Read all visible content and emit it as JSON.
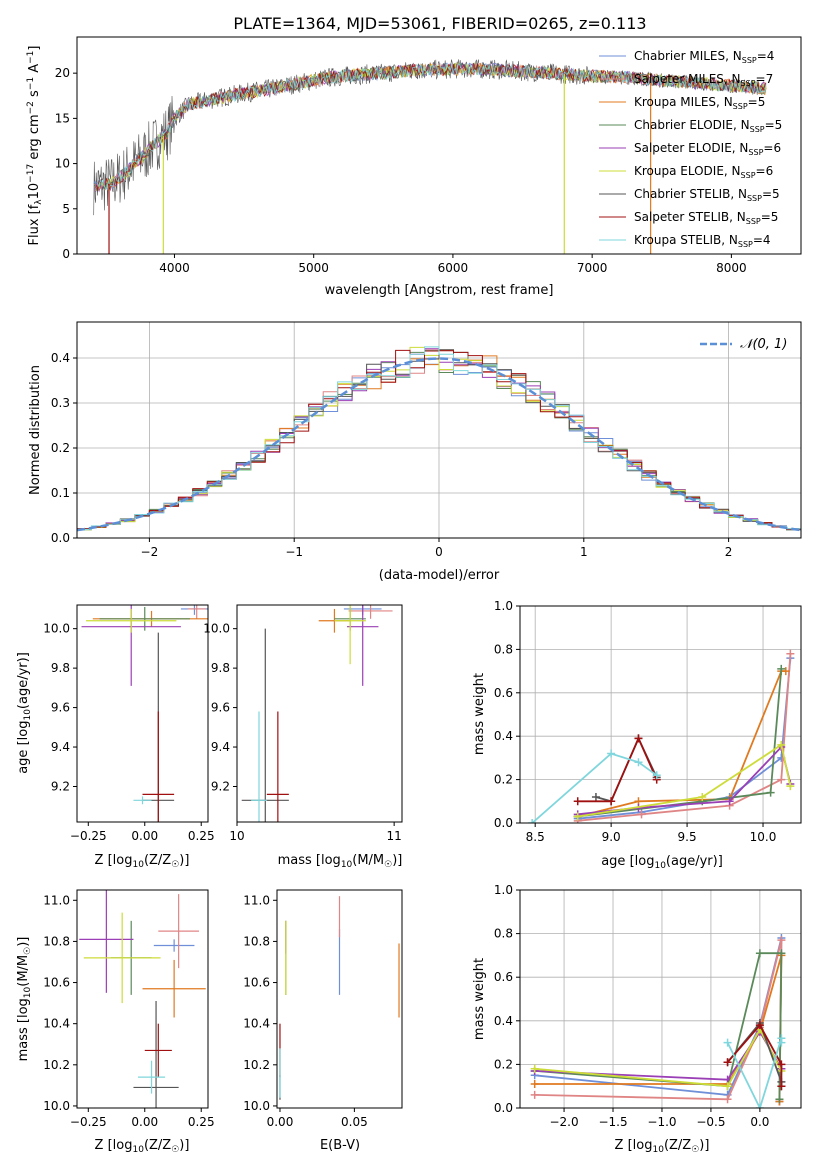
{
  "figure": {
    "title": "PLATE=1364, MJD=53061, FIBERID=0265, z=0.113"
  },
  "colors": {
    "Chabrier MILES": "#6f8fd8",
    "Salpeter MILES": "#e08585",
    "Kroupa MILES": "#e07a20",
    "Chabrier ELODIE": "#5a8a5a",
    "Salpeter ELODIE": "#9a3fb5",
    "Kroupa ELODIE": "#cddc39",
    "Chabrier STELIB": "#555555",
    "Salpeter STELIB": "#a01010",
    "Kroupa STELIB": "#7fd6dc"
  },
  "chart_data": [
    {
      "id": "spectrum",
      "type": "line",
      "xlabel": "wavelength [Angstrom, rest frame]",
      "ylabel": "Flux [f_λ10^-17 erg cm^-2 s^-1 A^-1]",
      "xlim": [
        3300,
        8500
      ],
      "ylim": [
        0,
        24
      ],
      "xticks": [
        4000,
        5000,
        6000,
        7000,
        8000
      ],
      "yticks": [
        0,
        5,
        10,
        15,
        20
      ],
      "grid": false,
      "legend_position": "top-right",
      "data_profile": {
        "x": [
          3420,
          3550,
          3650,
          3750,
          3850,
          3950,
          4000,
          4100,
          4300,
          4500,
          4700,
          4900,
          5100,
          5300,
          5500,
          5700,
          5900,
          6100,
          6300,
          6500,
          6700,
          6900,
          7100,
          7300,
          7500,
          7700,
          7900,
          8100,
          8250
        ],
        "y": [
          7.5,
          7.8,
          9.0,
          10.5,
          12.0,
          13.5,
          15.0,
          16.5,
          17.2,
          17.8,
          18.3,
          18.9,
          19.5,
          19.8,
          20.0,
          20.3,
          20.4,
          20.5,
          20.4,
          20.2,
          20.0,
          19.8,
          19.6,
          19.5,
          19.2,
          19.0,
          18.7,
          18.5,
          18.3
        ]
      },
      "legend": [
        {
          "name": "Chabrier MILES",
          "n": "N_SSP=4"
        },
        {
          "name": "Salpeter MILES",
          "n": "N_SSP=7"
        },
        {
          "name": "Kroupa MILES",
          "n": "N_SSP=5"
        },
        {
          "name": "Chabrier ELODIE",
          "n": "N_SSP=5"
        },
        {
          "name": "Salpeter ELODIE",
          "n": "N_SSP=6"
        },
        {
          "name": "Kroupa ELODIE",
          "n": "N_SSP=6"
        },
        {
          "name": "Chabrier STELIB",
          "n": "N_SSP=5"
        },
        {
          "name": "Salpeter STELIB",
          "n": "N_SSP=5"
        },
        {
          "name": "Kroupa STELIB",
          "n": "N_SSP=4"
        }
      ]
    },
    {
      "id": "residuals",
      "type": "line",
      "xlabel": "(data-model)/error",
      "ylabel": "Normed distribution",
      "xlim": [
        -2.5,
        2.5
      ],
      "ylim": [
        0,
        0.48
      ],
      "xticks": [
        -2,
        -1,
        0,
        1,
        2
      ],
      "yticks": [
        0.0,
        0.1,
        0.2,
        0.3,
        0.4
      ],
      "grid": true,
      "legend_position": "top-right",
      "reference_curve": {
        "name": "N(0,1)",
        "mean": 0,
        "sigma": 1
      },
      "histogram_bins": 50
    },
    {
      "id": "age_vs_Z",
      "type": "scatter",
      "xlabel": "Z [log10(Z/Z☉)]",
      "ylabel": "age [log10(age/yr)]",
      "xlim": [
        -0.3,
        0.28
      ],
      "ylim": [
        9.02,
        10.12
      ],
      "xticks": [
        -0.25,
        0.0,
        0.25
      ],
      "yticks": [
        9.2,
        9.4,
        9.6,
        9.8,
        10.0
      ],
      "grid": false,
      "points": [
        {
          "model": "Chabrier MILES",
          "x": 0.22,
          "y": 10.1,
          "xerr": 0.06,
          "yerr": 0.03
        },
        {
          "model": "Salpeter MILES",
          "x": 0.23,
          "y": 10.1,
          "xerr": 0.04,
          "yerr": 0.05
        },
        {
          "model": "Kroupa MILES",
          "x": 0.03,
          "y": 10.05,
          "xerr": 0.26,
          "yerr": 0.04
        },
        {
          "model": "Chabrier ELODIE",
          "x": 0.0,
          "y": 10.05,
          "xerr": 0.2,
          "yerr": 0.06
        },
        {
          "model": "Salpeter ELODIE",
          "x": -0.06,
          "y": 10.01,
          "xerr": 0.22,
          "yerr": 0.3
        },
        {
          "model": "Kroupa ELODIE",
          "x": -0.06,
          "y": 10.04,
          "xerr": 0.2,
          "yerr": 0.06
        },
        {
          "model": "Chabrier STELIB",
          "x": 0.06,
          "y": 9.13,
          "xerr": 0.07,
          "yerr": 0.85
        },
        {
          "model": "Salpeter STELIB",
          "x": 0.06,
          "y": 9.16,
          "xerr": 0.07,
          "yerr": 0.42
        },
        {
          "model": "Kroupa STELIB",
          "x": -0.01,
          "y": 9.13,
          "xerr": 0.04,
          "yerr": 0.02
        }
      ]
    },
    {
      "id": "age_vs_mass",
      "type": "scatter",
      "xlabel": "mass [log10(M/M☉)]",
      "ylabel": "",
      "xlim": [
        10.0,
        11.05
      ],
      "ylim": [
        9.02,
        10.12
      ],
      "xticks": [
        10,
        11
      ],
      "yticks": [
        9.2,
        9.4,
        9.6,
        9.8,
        10.0
      ],
      "grid": false,
      "points": [
        {
          "model": "Chabrier MILES",
          "x": 10.8,
          "y": 10.1,
          "xerr": 0.12,
          "yerr": 0.03
        },
        {
          "model": "Salpeter MILES",
          "x": 10.85,
          "y": 10.09,
          "xerr": 0.14,
          "yerr": 0.04
        },
        {
          "model": "Kroupa MILES",
          "x": 10.62,
          "y": 10.04,
          "xerr": 0.1,
          "yerr": 0.06
        },
        {
          "model": "Chabrier ELODIE",
          "x": 10.72,
          "y": 10.05,
          "xerr": 0.1,
          "yerr": 0.06
        },
        {
          "model": "Salpeter ELODIE",
          "x": 10.8,
          "y": 10.01,
          "xerr": 0.1,
          "yerr": 0.3
        },
        {
          "model": "Kroupa ELODIE",
          "x": 10.72,
          "y": 10.04,
          "xerr": 0.1,
          "yerr": 0.22
        },
        {
          "model": "Chabrier STELIB",
          "x": 10.18,
          "y": 9.13,
          "xerr": 0.15,
          "yerr": 0.87
        },
        {
          "model": "Salpeter STELIB",
          "x": 10.26,
          "y": 9.16,
          "xerr": 0.07,
          "yerr": 0.42
        },
        {
          "model": "Kroupa STELIB",
          "x": 10.14,
          "y": 9.13,
          "xerr": 0.05,
          "yerr": 0.45
        }
      ]
    },
    {
      "id": "weight_vs_age",
      "type": "line",
      "xlabel": "age [log10(age/yr)]",
      "ylabel": "mass weight",
      "xlim": [
        8.4,
        10.25
      ],
      "ylim": [
        0,
        1.0
      ],
      "xticks": [
        8.5,
        9.0,
        9.5,
        10.0
      ],
      "yticks": [
        0.0,
        0.2,
        0.4,
        0.6,
        0.8,
        1.0
      ],
      "grid": true,
      "series": [
        {
          "model": "Chabrier MILES",
          "x": [
            8.78,
            9.2,
            9.78,
            10.12,
            10.18
          ],
          "y": [
            0.02,
            0.05,
            0.12,
            0.3,
            0.76
          ]
        },
        {
          "model": "Salpeter MILES",
          "x": [
            8.78,
            9.2,
            9.78,
            10.12,
            10.18
          ],
          "y": [
            0.01,
            0.04,
            0.08,
            0.2,
            0.78
          ]
        },
        {
          "model": "Kroupa MILES",
          "x": [
            8.78,
            9.18,
            9.78,
            10.12,
            10.15
          ],
          "y": [
            0.03,
            0.1,
            0.11,
            0.7,
            0.7
          ]
        },
        {
          "model": "Chabrier ELODIE",
          "x": [
            8.78,
            9.6,
            10.05,
            10.12
          ],
          "y": [
            0.03,
            0.1,
            0.14,
            0.71
          ]
        },
        {
          "model": "Salpeter ELODIE",
          "x": [
            8.78,
            9.18,
            9.78,
            10.12,
            10.18
          ],
          "y": [
            0.04,
            0.07,
            0.1,
            0.35,
            0.18
          ]
        },
        {
          "model": "Kroupa ELODIE",
          "x": [
            8.78,
            9.6,
            10.12,
            10.18
          ],
          "y": [
            0.03,
            0.12,
            0.36,
            0.17
          ]
        },
        {
          "model": "Chabrier STELIB",
          "x": [
            8.9,
            9.0,
            9.18,
            9.3
          ],
          "y": [
            0.12,
            0.1,
            0.39,
            0.21
          ]
        },
        {
          "model": "Salpeter STELIB",
          "x": [
            8.78,
            9.0,
            9.18,
            9.3
          ],
          "y": [
            0.1,
            0.1,
            0.39,
            0.2
          ]
        },
        {
          "model": "Kroupa STELIB",
          "x": [
            8.48,
            9.0,
            9.18,
            9.3
          ],
          "y": [
            0.0,
            0.32,
            0.28,
            0.22
          ]
        }
      ]
    },
    {
      "id": "mass_vs_Z",
      "type": "scatter",
      "xlabel": "Z [log10(Z/Z☉)]",
      "ylabel": "mass [log10(M/M☉)]",
      "xlim": [
        -0.3,
        0.28
      ],
      "ylim": [
        9.99,
        11.05
      ],
      "xticks": [
        -0.25,
        0.0,
        0.25
      ],
      "yticks": [
        10.0,
        10.2,
        10.4,
        10.6,
        10.8,
        11.0
      ],
      "grid": false,
      "points": [
        {
          "model": "Chabrier MILES",
          "x": 0.13,
          "y": 10.78,
          "xerr": 0.09,
          "yerr": 0.03
        },
        {
          "model": "Salpeter MILES",
          "x": 0.15,
          "y": 10.85,
          "xerr": 0.09,
          "yerr": 0.18
        },
        {
          "model": "Kroupa MILES",
          "x": 0.13,
          "y": 10.57,
          "xerr": 0.14,
          "yerr": 0.14
        },
        {
          "model": "Chabrier ELODIE",
          "x": -0.06,
          "y": 10.72,
          "xerr": 0.09,
          "yerr": 0.18
        },
        {
          "model": "Salpeter ELODIE",
          "x": -0.17,
          "y": 10.81,
          "xerr": 0.12,
          "yerr": 0.26
        },
        {
          "model": "Kroupa ELODIE",
          "x": -0.1,
          "y": 10.72,
          "xerr": 0.17,
          "yerr": 0.22
        },
        {
          "model": "Chabrier STELIB",
          "x": 0.05,
          "y": 10.09,
          "xerr": 0.1,
          "yerr": 0.42
        },
        {
          "model": "Salpeter STELIB",
          "x": 0.06,
          "y": 10.27,
          "xerr": 0.06,
          "yerr": 0.13
        },
        {
          "model": "Kroupa STELIB",
          "x": 0.03,
          "y": 10.14,
          "xerr": 0.06,
          "yerr": 0.08
        }
      ]
    },
    {
      "id": "mass_vs_EBV",
      "type": "scatter",
      "xlabel": "E(B-V)",
      "ylabel": "",
      "xlim": [
        -0.002,
        0.082
      ],
      "ylim": [
        9.99,
        11.05
      ],
      "xticks": [
        0.0,
        0.05
      ],
      "yticks": [
        10.0,
        10.2,
        10.4,
        10.6,
        10.8,
        11.0
      ],
      "grid": false,
      "points": [
        {
          "model": "Chabrier MILES",
          "x": 0.04,
          "y": 10.7,
          "xerr": 0.0,
          "yerr": 0.16
        },
        {
          "model": "Salpeter MILES",
          "x": 0.04,
          "y": 10.92,
          "xerr": 0.0,
          "yerr": 0.1
        },
        {
          "model": "Kroupa MILES",
          "x": 0.08,
          "y": 10.61,
          "xerr": 0.0,
          "yerr": 0.18
        },
        {
          "model": "Chabrier ELODIE",
          "x": 0.004,
          "y": 10.72,
          "xerr": 0.0,
          "yerr": 0.18
        },
        {
          "model": "Salpeter ELODIE",
          "x": 0.004,
          "y": 10.82,
          "xerr": 0.0,
          "yerr": 0.08
        },
        {
          "model": "Kroupa ELODIE",
          "x": 0.004,
          "y": 10.72,
          "xerr": 0.0,
          "yerr": 0.18
        },
        {
          "model": "Chabrier STELIB",
          "x": 0.0,
          "y": 10.09,
          "xerr": 0.0,
          "yerr": 0.06
        },
        {
          "model": "Salpeter STELIB",
          "x": 0.0,
          "y": 10.27,
          "xerr": 0.0,
          "yerr": 0.13
        },
        {
          "model": "Kroupa STELIB",
          "x": 0.0,
          "y": 10.16,
          "xerr": 0.0,
          "yerr": 0.12
        }
      ]
    },
    {
      "id": "weight_vs_Z",
      "type": "line",
      "xlabel": "Z [log10(Z/Z☉)]",
      "ylabel": "mass weight",
      "xlim": [
        -2.45,
        0.42
      ],
      "ylim": [
        0,
        1.0
      ],
      "xticks": [
        -2.0,
        -1.5,
        -1.0,
        -0.5,
        0.0
      ],
      "yticks": [
        0.0,
        0.2,
        0.4,
        0.6,
        0.8,
        1.0
      ],
      "grid": true,
      "series": [
        {
          "model": "Chabrier MILES",
          "x": [
            -2.3,
            -0.33,
            0.0,
            0.22,
            0.2
          ],
          "y": [
            0.15,
            0.06,
            0.38,
            0.78,
            0.03
          ]
        },
        {
          "model": "Salpeter MILES",
          "x": [
            -2.3,
            -0.33,
            0.0,
            0.22,
            0.2
          ],
          "y": [
            0.06,
            0.04,
            0.37,
            0.77,
            0.03
          ]
        },
        {
          "model": "Kroupa MILES",
          "x": [
            -2.3,
            -0.33,
            0.0,
            0.22,
            0.2
          ],
          "y": [
            0.11,
            0.11,
            0.35,
            0.7,
            0.03
          ]
        },
        {
          "model": "Chabrier ELODIE",
          "x": [
            -2.3,
            -0.33,
            0.0,
            0.22,
            0.2
          ],
          "y": [
            0.17,
            0.1,
            0.71,
            0.71,
            0.04
          ]
        },
        {
          "model": "Salpeter ELODIE",
          "x": [
            -2.3,
            -0.33,
            0.0,
            0.22
          ],
          "y": [
            0.17,
            0.13,
            0.35,
            0.18
          ]
        },
        {
          "model": "Kroupa ELODIE",
          "x": [
            -2.3,
            -0.33,
            0.0,
            0.22
          ],
          "y": [
            0.18,
            0.1,
            0.36,
            0.17
          ]
        },
        {
          "model": "Chabrier STELIB",
          "x": [
            -0.33,
            0.0,
            0.22,
            0.22
          ],
          "y": [
            0.21,
            0.39,
            0.12,
            0.1
          ]
        },
        {
          "model": "Salpeter STELIB",
          "x": [
            -0.33,
            0.0,
            0.22,
            0.22
          ],
          "y": [
            0.21,
            0.38,
            0.2,
            0.1
          ]
        },
        {
          "model": "Kroupa STELIB",
          "x": [
            -0.33,
            0.0,
            0.22,
            0.22
          ],
          "y": [
            0.3,
            0.0,
            0.32,
            0.3
          ]
        }
      ]
    }
  ]
}
